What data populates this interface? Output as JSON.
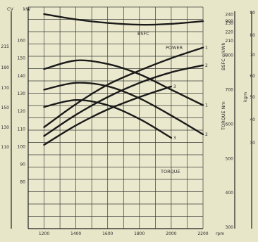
{
  "chart_data": {
    "type": "line",
    "grid": true,
    "x_ticks": [
      "1200",
      "1400",
      "1600",
      "1800",
      "2000",
      "2200"
    ],
    "x_unit": "rpm",
    "xlim": [
      1100,
      2200
    ],
    "left_axis_top_labels": [
      "CV",
      "kW"
    ],
    "left_cv_ticks": [
      "215",
      "190",
      "170",
      "150",
      "130",
      "110"
    ],
    "left_kw_ticks": [
      "160",
      "150",
      "140",
      "130",
      "120",
      "110",
      "100",
      "90",
      "80"
    ],
    "right_axis_labels": [
      "BSFC g/kWh",
      "TORQUE Nm",
      "kgm"
    ],
    "right_bsfc_ticks": [
      "240",
      "230",
      "220",
      "210"
    ],
    "right_nm_ticks": [
      "900",
      "800",
      "700",
      "600",
      "500",
      "400",
      "300"
    ],
    "right_kgm_ticks": [
      "90",
      "80",
      "70",
      "60",
      "50",
      "40",
      "30"
    ],
    "kw_axis_range": [
      60,
      165
    ],
    "torque_axis_range": [
      300,
      920
    ],
    "bsfc_axis_range": [
      175,
      245
    ],
    "series": [
      {
        "name": "BSFC",
        "group": "bsfc",
        "x": [
          1200,
          1400,
          1600,
          1800,
          2000,
          2200
        ],
        "y": [
          237,
          231,
          227,
          225,
          226,
          229
        ]
      },
      {
        "name": "POWER",
        "group": "power",
        "end_label": "1",
        "x": [
          1200,
          1400,
          1600,
          1800,
          2000,
          2200
        ],
        "y": [
          111,
          124,
          135,
          143,
          150,
          156
        ]
      },
      {
        "name": "",
        "group": "power",
        "end_label": "2",
        "x": [
          1200,
          1400,
          1600,
          1800,
          2000,
          2200
        ],
        "y": [
          106,
          118,
          128,
          136,
          142,
          146
        ]
      },
      {
        "name": "",
        "group": "power",
        "end_label": "3",
        "x": [
          1200,
          1400,
          1600,
          1800,
          2000
        ],
        "y": [
          101,
          112,
          121,
          128,
          134
        ]
      },
      {
        "name": "TORQUE",
        "group": "torque",
        "end_label": "1",
        "x": [
          1200,
          1400,
          1600,
          1800,
          2000,
          2200
        ],
        "y": [
          760,
          785,
          775,
          745,
          700,
          655
        ]
      },
      {
        "name": "",
        "group": "torque",
        "end_label": "2",
        "x": [
          1200,
          1400,
          1600,
          1800,
          2000,
          2200
        ],
        "y": [
          700,
          720,
          710,
          675,
          625,
          570
        ]
      },
      {
        "name": "",
        "group": "torque",
        "end_label": "3",
        "x": [
          1200,
          1400,
          1600,
          1800,
          2000
        ],
        "y": [
          650,
          670,
          655,
          615,
          560
        ]
      }
    ]
  }
}
